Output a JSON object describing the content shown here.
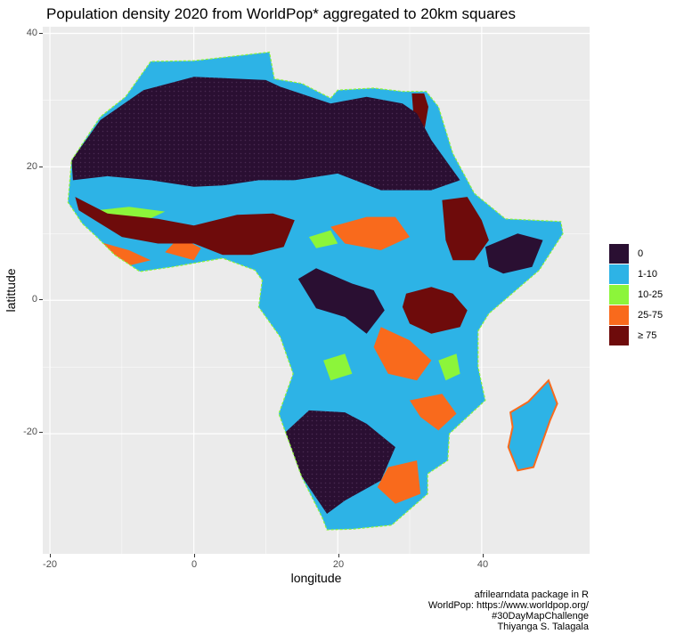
{
  "title": "Population density 2020 from WorldPop* aggregated to 20km squares",
  "axes": {
    "xlabel": "longitude",
    "ylabel": "latittude",
    "xticks": [
      -20,
      0,
      20,
      40
    ],
    "yticks": [
      40,
      20,
      0,
      -20
    ],
    "xlim": [
      -21,
      55
    ],
    "ylim": [
      -38,
      41
    ]
  },
  "legend": {
    "items": [
      {
        "label": "0",
        "color": "#2a0f32"
      },
      {
        "label": "1-10",
        "color": "#2db3e6"
      },
      {
        "label": "10-25",
        "color": "#8cf53a"
      },
      {
        "label": "25-75",
        "color": "#f96a1c"
      },
      {
        "label": "≥ 75",
        "color": "#6e0b0b"
      }
    ]
  },
  "caption": [
    "afrilearndata package in R",
    "WorldPop: https://www.worldpop.org/",
    "#30DayMapChallenge",
    "Thiyanga S. Talagala"
  ],
  "colors": {
    "panel": "#ebebeb",
    "grid": "#ffffff"
  },
  "map_regions": {
    "africa_outline": [
      [
        -17,
        21
      ],
      [
        -13,
        27.5
      ],
      [
        -9.5,
        30.5
      ],
      [
        -6,
        35.8
      ],
      [
        0,
        35.9
      ],
      [
        10.5,
        37.2
      ],
      [
        11.2,
        33.2
      ],
      [
        15,
        32.5
      ],
      [
        19,
        30.3
      ],
      [
        20,
        31.5
      ],
      [
        25,
        31.8
      ],
      [
        29,
        31.3
      ],
      [
        32.3,
        31.3
      ],
      [
        34,
        29
      ],
      [
        36,
        22
      ],
      [
        39,
        16
      ],
      [
        43.3,
        12.2
      ],
      [
        51,
        11.8
      ],
      [
        51.3,
        10
      ],
      [
        48,
        4.5
      ],
      [
        41,
        -2
      ],
      [
        39.5,
        -4.6
      ],
      [
        39.5,
        -10
      ],
      [
        40.5,
        -15
      ],
      [
        35.5,
        -20
      ],
      [
        35.3,
        -24
      ],
      [
        32.5,
        -26
      ],
      [
        32.5,
        -29
      ],
      [
        27.5,
        -33.7
      ],
      [
        22,
        -34.3
      ],
      [
        18.5,
        -34.4
      ],
      [
        17.8,
        -32.5
      ],
      [
        15,
        -26.5
      ],
      [
        11.8,
        -17
      ],
      [
        13.8,
        -11
      ],
      [
        12,
        -5.5
      ],
      [
        9,
        -1
      ],
      [
        9.5,
        3
      ],
      [
        8.5,
        4.5
      ],
      [
        4,
        6.3
      ],
      [
        -3,
        5
      ],
      [
        -7.5,
        4.3
      ],
      [
        -11,
        6.8
      ],
      [
        -13.5,
        9.5
      ],
      [
        -15.5,
        11.5
      ],
      [
        -17.5,
        14.7
      ]
    ],
    "madagascar": [
      [
        49.3,
        -12
      ],
      [
        50.5,
        -15.5
      ],
      [
        49.5,
        -18
      ],
      [
        47.2,
        -25
      ],
      [
        45,
        -25.5
      ],
      [
        43.7,
        -22
      ],
      [
        44.3,
        -19
      ],
      [
        44,
        -16.8
      ],
      [
        46.5,
        -15.2
      ]
    ],
    "zero_sahara": [
      [
        -17,
        21
      ],
      [
        -13,
        27
      ],
      [
        -7,
        31.5
      ],
      [
        0,
        33.5
      ],
      [
        10,
        33
      ],
      [
        12,
        32
      ],
      [
        19,
        29.5
      ],
      [
        24,
        30.5
      ],
      [
        29,
        29.5
      ],
      [
        31,
        28
      ],
      [
        33,
        24
      ],
      [
        35,
        21
      ],
      [
        37,
        18
      ],
      [
        33,
        16.5
      ],
      [
        26,
        16.5
      ],
      [
        20,
        19
      ],
      [
        14,
        18
      ],
      [
        9,
        18
      ],
      [
        4,
        17.2
      ],
      [
        0,
        17
      ],
      [
        -6,
        18
      ],
      [
        -12,
        18.6
      ],
      [
        -16.8,
        18
      ]
    ],
    "zero_kalahari": [
      [
        12.5,
        -20
      ],
      [
        16,
        -16.5
      ],
      [
        21,
        -16.8
      ],
      [
        24,
        -18.5
      ],
      [
        28,
        -22
      ],
      [
        26,
        -27
      ],
      [
        21,
        -30
      ],
      [
        18.5,
        -32
      ],
      [
        16,
        -28
      ],
      [
        13.5,
        -24
      ]
    ],
    "zero_congo": [
      [
        14.5,
        3.2
      ],
      [
        17,
        4.8
      ],
      [
        22,
        2.5
      ],
      [
        25,
        1.5
      ],
      [
        26.5,
        -1.5
      ],
      [
        24,
        -5
      ],
      [
        21,
        -2.5
      ],
      [
        17,
        -1.2
      ]
    ],
    "zero_east": [
      [
        40.5,
        8
      ],
      [
        45,
        10
      ],
      [
        48.5,
        9
      ],
      [
        47,
        5
      ],
      [
        43,
        4
      ],
      [
        41,
        5
      ]
    ],
    "dense_sahel": [
      [
        -16.5,
        15.5
      ],
      [
        -12,
        13
      ],
      [
        -5,
        12.2
      ],
      [
        0,
        11.2
      ],
      [
        6,
        12.8
      ],
      [
        11,
        13
      ],
      [
        14,
        12
      ],
      [
        12.5,
        8
      ],
      [
        8,
        6.8
      ],
      [
        4,
        6.8
      ],
      [
        0,
        8.5
      ],
      [
        -5,
        8.5
      ],
      [
        -10,
        9.5
      ],
      [
        -13,
        11.5
      ],
      [
        -16,
        13.5
      ]
    ],
    "dense_ethiopia": [
      [
        34.5,
        15
      ],
      [
        38,
        15.5
      ],
      [
        40,
        12
      ],
      [
        41,
        9
      ],
      [
        39,
        6
      ],
      [
        36,
        6
      ],
      [
        35,
        9
      ]
    ],
    "dense_lakes": [
      [
        29.5,
        1
      ],
      [
        33,
        2
      ],
      [
        36,
        1
      ],
      [
        38,
        -1.5
      ],
      [
        37,
        -4
      ],
      [
        33,
        -5
      ],
      [
        30,
        -3.5
      ],
      [
        29,
        -1
      ]
    ],
    "dense_nile": [
      [
        30.3,
        31
      ],
      [
        32,
        31
      ],
      [
        32.6,
        29
      ],
      [
        31.8,
        24
      ],
      [
        31,
        24.5
      ],
      [
        30.5,
        28
      ]
    ],
    "orange_zones": [
      [
        [
          -14,
          9
        ],
        [
          -9,
          7.5
        ],
        [
          -6,
          6
        ],
        [
          -9,
          5.2
        ],
        [
          -12,
          7
        ]
      ],
      [
        [
          -4,
          7.2
        ],
        [
          0,
          6
        ],
        [
          1,
          7.8
        ],
        [
          -2,
          9.5
        ]
      ],
      [
        [
          19,
          11
        ],
        [
          24,
          12.5
        ],
        [
          28,
          12.5
        ],
        [
          30,
          9.5
        ],
        [
          26,
          7.5
        ],
        [
          21,
          8.5
        ]
      ],
      [
        [
          26,
          -4
        ],
        [
          30,
          -6
        ],
        [
          33,
          -9
        ],
        [
          31,
          -12
        ],
        [
          27,
          -11
        ],
        [
          25,
          -7
        ]
      ],
      [
        [
          30,
          -15
        ],
        [
          34.5,
          -14
        ],
        [
          36.5,
          -17
        ],
        [
          34,
          -19.5
        ],
        [
          31.5,
          -17.5
        ]
      ],
      [
        [
          27,
          -25
        ],
        [
          31,
          -24
        ],
        [
          31.5,
          -29
        ],
        [
          28,
          -30.5
        ],
        [
          25.5,
          -28
        ]
      ],
      [
        [
          3.5,
          8
        ],
        [
          8,
          9.5
        ],
        [
          10,
          7.5
        ],
        [
          6,
          6.8
        ]
      ]
    ],
    "green_zones": [
      [
        [
          -13.5,
          13.5
        ],
        [
          -9,
          14
        ],
        [
          -4,
          13.3
        ],
        [
          -6,
          12.3
        ],
        [
          -11,
          12.4
        ]
      ],
      [
        [
          16,
          9.5
        ],
        [
          19,
          10.5
        ],
        [
          20,
          8.5
        ],
        [
          17,
          7.8
        ]
      ],
      [
        [
          34,
          -9
        ],
        [
          36.5,
          -8
        ],
        [
          37,
          -11
        ],
        [
          35,
          -12
        ]
      ],
      [
        [
          18,
          -9
        ],
        [
          21,
          -8
        ],
        [
          22,
          -11
        ],
        [
          19,
          -12
        ]
      ]
    ]
  }
}
